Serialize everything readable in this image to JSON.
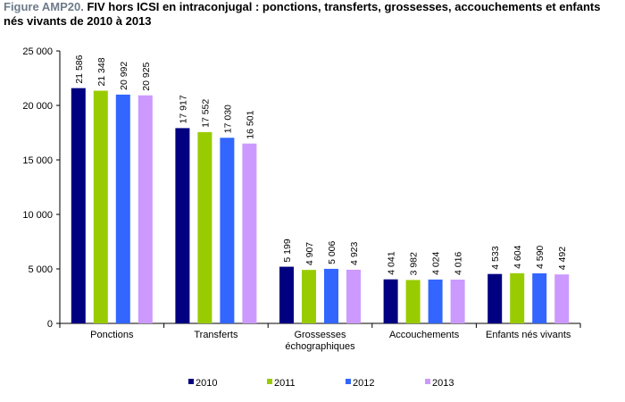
{
  "figure": {
    "prefix": "Figure AMP20.",
    "title": "FIV hors ICSI en intraconjugal : ponctions, transferts, grossesses, accouchements et enfants nés vivants de 2010 à 2013"
  },
  "chart_data": {
    "type": "bar",
    "categories": [
      [
        "Ponctions"
      ],
      [
        "Transferts"
      ],
      [
        "Grossesses",
        "échographiques"
      ],
      [
        "Accouchements"
      ],
      [
        "Enfants nés vivants"
      ]
    ],
    "series": [
      {
        "name": "2010",
        "color": "#000080",
        "values": [
          21586,
          17917,
          5199,
          4041,
          4533
        ],
        "labels": [
          "21 586",
          "17 917",
          "5 199",
          "4 041",
          "4 533"
        ]
      },
      {
        "name": "2011",
        "color": "#99cc00",
        "values": [
          21348,
          17552,
          4907,
          3982,
          4604
        ],
        "labels": [
          "21 348",
          "17 552",
          "4 907",
          "3 982",
          "4 604"
        ]
      },
      {
        "name": "2012",
        "color": "#3366ff",
        "values": [
          20992,
          17030,
          5006,
          4024,
          4590
        ],
        "labels": [
          "20 992",
          "17 030",
          "5 006",
          "4 024",
          "4 590"
        ]
      },
      {
        "name": "2013",
        "color": "#cc99ff",
        "values": [
          20925,
          16501,
          4923,
          4016,
          4492
        ],
        "labels": [
          "20 925",
          "16 501",
          "4 923",
          "4 016",
          "4 492"
        ]
      }
    ],
    "ylim": [
      0,
      25000
    ],
    "yticks": [
      0,
      5000,
      10000,
      15000,
      20000,
      25000
    ],
    "ytick_labels": [
      "0",
      "5 000",
      "10 000",
      "15 000",
      "20 000",
      "25 000"
    ],
    "xlabel": "",
    "ylabel": "",
    "grid": false,
    "legend_position": "bottom"
  }
}
